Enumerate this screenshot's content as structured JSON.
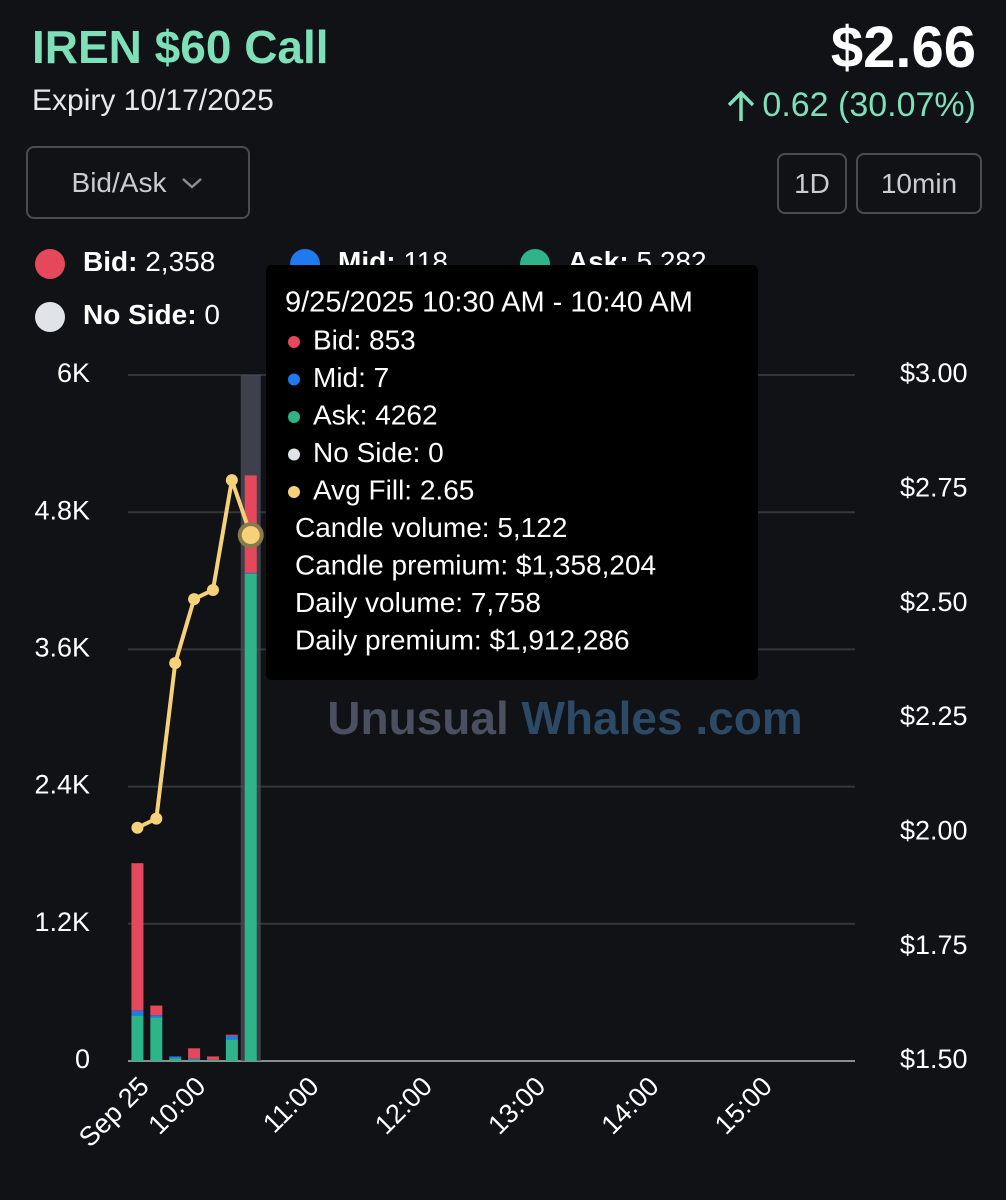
{
  "header": {
    "title": "IREN $60 Call",
    "expiry": "Expiry 10/17/2025",
    "price": "$2.66",
    "change": "0.62 (30.07%)"
  },
  "controls": {
    "mode": "Bid/Ask",
    "range": "1D",
    "interval": "10min"
  },
  "tooltip": {
    "title": "9/25/2025 10:30 AM - 10:40 AM",
    "lines": [
      "Bid: 853",
      "Mid: 7",
      "Ask: 4262",
      "No Side: 0",
      "Avg Fill: 2.65",
      "Candle volume: 5,122",
      "Candle premium: $1,358,204",
      "Daily volume: 7,758",
      "Daily premium: $1,912,286"
    ]
  },
  "watermark": {
    "left": "Unusual",
    "right": "Whales .com"
  },
  "chart_data": {
    "type": "bar",
    "x": [
      "09:30",
      "09:40",
      "09:50",
      "10:00",
      "10:10",
      "10:20",
      "10:30"
    ],
    "xlim": [
      "09:25",
      "15:50"
    ],
    "xticks": [
      {
        "value": "09:30",
        "label": "Sep 25"
      },
      "10:00",
      "11:00",
      "12:00",
      "13:00",
      "14:00",
      "15:00"
    ],
    "ylim": [
      0,
      6000
    ],
    "yticks": [
      0,
      {
        "value": 1200,
        "label": "1.2K"
      },
      {
        "value": 2400,
        "label": "2.4K"
      },
      {
        "value": 3600,
        "label": "3.6K"
      },
      {
        "value": 4800,
        "label": "4.8K"
      },
      {
        "value": 6000,
        "label": "6K"
      }
    ],
    "y2lim": [
      1.5,
      3.0
    ],
    "y2ticks": [
      {
        "value": 1.5,
        "label": "$1.50"
      },
      {
        "value": 1.75,
        "label": "$1.75"
      },
      {
        "value": 2.0,
        "label": "$2.00"
      },
      {
        "value": 2.25,
        "label": "$2.25"
      },
      {
        "value": 2.5,
        "label": "$2.50"
      },
      {
        "value": 2.75,
        "label": "$2.75"
      },
      {
        "value": 3.0,
        "label": "$3.00"
      }
    ],
    "grid": true,
    "series": [
      {
        "name": "Bid:",
        "total_label": "2,358",
        "color": "#e5485a",
        "values": [
          1290,
          85,
          0,
          90,
          30,
          10,
          853
        ]
      },
      {
        "name": "Mid:",
        "total_label": "118",
        "color": "#1f7af0",
        "values": [
          40,
          20,
          15,
          6,
          0,
          30,
          7
        ]
      },
      {
        "name": "Ask:",
        "total_label": "5,282",
        "color": "#2fb388",
        "values": [
          400,
          380,
          25,
          15,
          10,
          190,
          4262
        ]
      },
      {
        "name": "No Side:",
        "total_label": "0",
        "color": "#e0e3e8",
        "values": [
          0,
          0,
          0,
          0,
          0,
          0,
          0
        ]
      },
      {
        "name": "Avg Fill",
        "type": "line",
        "axis": "y2",
        "color": "#f5d27a",
        "values": [
          2.01,
          2.03,
          2.37,
          2.51,
          2.53,
          2.77,
          2.65
        ]
      }
    ]
  }
}
